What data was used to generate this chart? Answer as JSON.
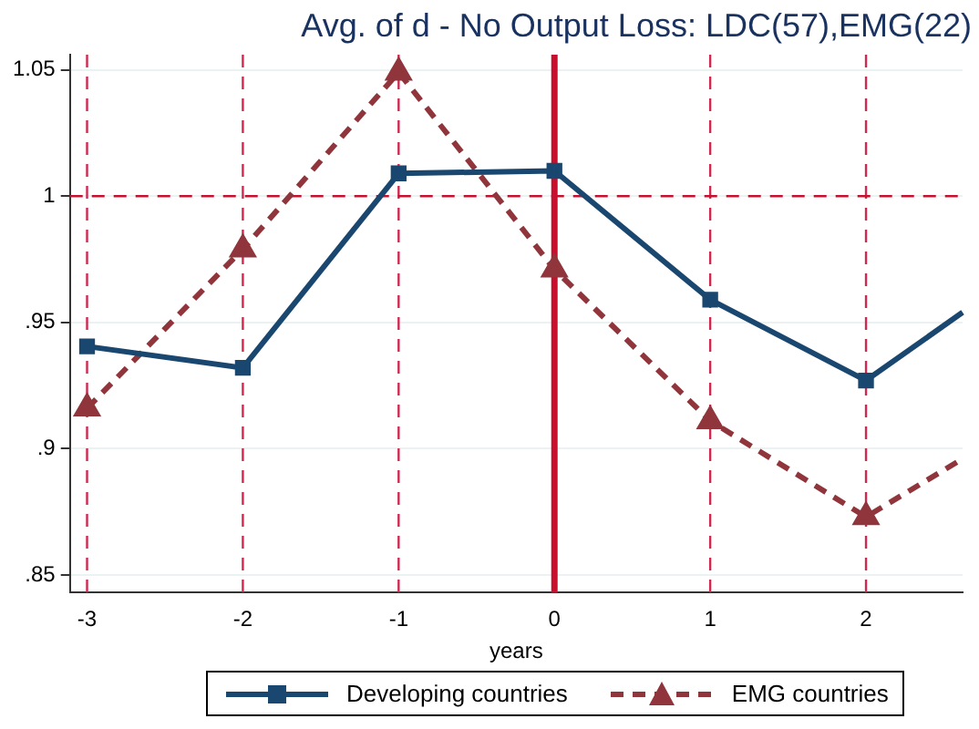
{
  "chart_data": {
    "type": "line",
    "title": "Avg. of d - No Output Loss: LDC(57),EMG(22)",
    "xlabel": "years",
    "x": [
      -3,
      -2,
      -1,
      0,
      1,
      2,
      2.62
    ],
    "series": [
      {
        "name": "Developing countries",
        "color": "#1a476f",
        "values": [
          0.9405,
          0.932,
          1.009,
          1.01,
          0.959,
          0.927,
          0.954
        ],
        "marker": "square",
        "line_style": "solid"
      },
      {
        "name": "EMG countries",
        "color": "#90353b",
        "values": [
          0.916,
          0.979,
          1.049,
          0.971,
          0.911,
          0.873,
          0.896
        ],
        "marker": "triangle",
        "line_style": "dashed"
      }
    ],
    "xlim": [
      -3.11,
      2.62
    ],
    "xticks": [
      -3,
      -2,
      -1,
      0,
      1,
      2
    ],
    "ylim": [
      0.843,
      1.056
    ],
    "yticks": [
      {
        "value": 0.85,
        "label": ".85"
      },
      {
        "value": 0.9,
        "label": ".9"
      },
      {
        "value": 0.95,
        "label": ".95"
      },
      1,
      1.05
    ],
    "ref_lines": [
      {
        "axis": "x",
        "value": -3,
        "color": "#d0284f",
        "line_style": "dashed"
      },
      {
        "axis": "x",
        "value": -2,
        "color": "#d0284f",
        "line_style": "dashed"
      },
      {
        "axis": "x",
        "value": -1,
        "color": "#d0284f",
        "line_style": "dashed"
      },
      {
        "axis": "x",
        "value": 1,
        "color": "#d0284f",
        "line_style": "dashed"
      },
      {
        "axis": "x",
        "value": 2,
        "color": "#d0284f",
        "line_style": "dashed"
      },
      {
        "axis": "x",
        "value": 0,
        "color": "#c8102e",
        "line_style": "solid"
      },
      {
        "axis": "y",
        "value": 1,
        "color": "#c8102e",
        "line_style": "dashed"
      }
    ],
    "grid": "y",
    "legend": "bottom"
  }
}
